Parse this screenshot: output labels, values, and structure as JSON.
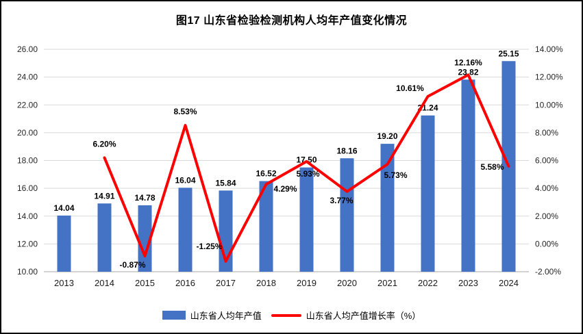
{
  "chart": {
    "title": "图17  山东省检验检测机构人均年产值变化情况"
  },
  "chart_data": {
    "type": "combo",
    "title": "图17  山东省检验检测机构人均年产值变化情况",
    "categories": [
      "2013",
      "2014",
      "2015",
      "2016",
      "2017",
      "2018",
      "2019",
      "2020",
      "2021",
      "2022",
      "2023",
      "2024"
    ],
    "series": [
      {
        "name": "山东省人均年产值",
        "type": "bar",
        "axis": "left",
        "color": "#4472C4",
        "values": [
          14.04,
          14.91,
          14.78,
          16.04,
          15.84,
          16.52,
          17.5,
          18.16,
          19.2,
          21.24,
          23.82,
          25.15
        ],
        "labels": [
          "14.04",
          "14.91",
          "14.78",
          "16.04",
          "15.84",
          "16.52",
          "17.50",
          "18.16",
          "19.20",
          "21.24",
          "23.82",
          "25.15"
        ]
      },
      {
        "name": "山东省人均产值增长率（%）",
        "type": "line",
        "axis": "right",
        "color": "#FF0000",
        "values": [
          null,
          6.2,
          -0.87,
          8.53,
          -1.25,
          4.29,
          5.93,
          3.77,
          5.73,
          10.61,
          12.16,
          5.58
        ],
        "labels": [
          "",
          "6.20%",
          "-0.87%",
          "8.53%",
          "-1.25%",
          "4.29%",
          "5.93%",
          "3.77%",
          "5.73%",
          "10.61%",
          "12.16%",
          "5.58%"
        ]
      }
    ],
    "left_axis": {
      "min": 10,
      "max": 26,
      "step": 2,
      "tick_labels": [
        "10.00",
        "12.00",
        "14.00",
        "16.00",
        "18.00",
        "20.00",
        "22.00",
        "24.00",
        "26.00"
      ]
    },
    "right_axis": {
      "min": -2,
      "max": 14,
      "step": 2,
      "tick_labels": [
        "-2.00%",
        "0.00%",
        "2.00%",
        "4.00%",
        "6.00%",
        "8.00%",
        "10.00%",
        "12.00%",
        "14.00%"
      ]
    },
    "grid": true,
    "legend_position": "bottom"
  }
}
